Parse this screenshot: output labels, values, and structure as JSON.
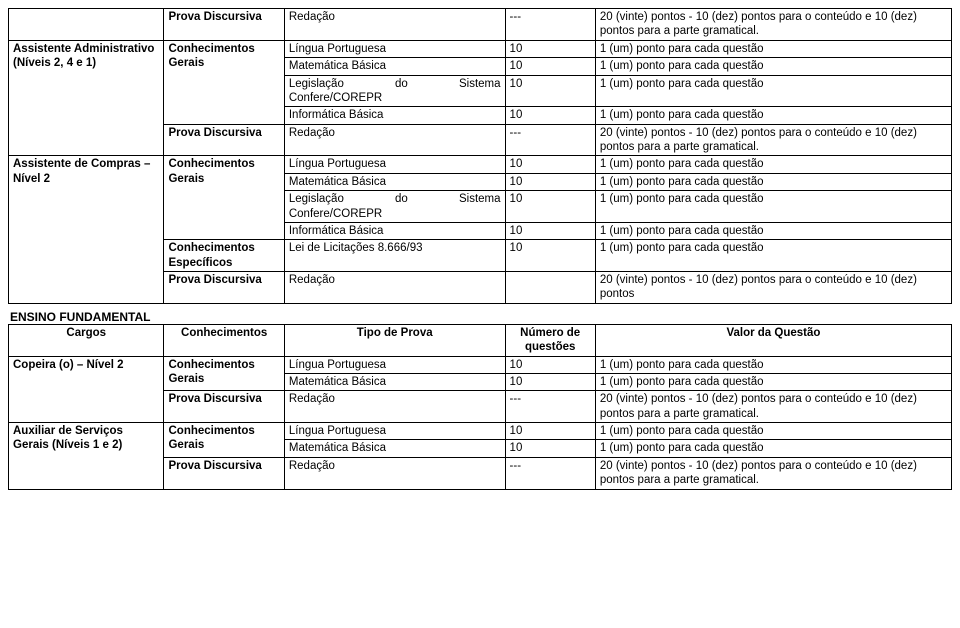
{
  "colors": {
    "text": "#000000",
    "border": "#000000",
    "bg": "#ffffff"
  },
  "fonts": {
    "family": "Arial",
    "size_pt": 11.5
  },
  "sections": {
    "top": {
      "rows": [
        {
          "cargo": "",
          "conh": "Prova Discursiva",
          "tipo": "Redação",
          "num": "---",
          "valor": "20 (vinte) pontos - 10 (dez) pontos para o conteúdo e 10 (dez) pontos para a parte gramatical."
        }
      ],
      "groups": [
        {
          "cargo": "Assistente Administrativo (Níveis 2, 4 e 1)",
          "conh_group": "Conhecimentos Gerais",
          "items": [
            {
              "tipo": "Língua Portuguesa",
              "num": "10",
              "valor": "1 (um) ponto para cada questão"
            },
            {
              "tipo": "Matemática Básica",
              "num": "10",
              "valor": "1 (um) ponto para cada questão"
            },
            {
              "tipo_parts": [
                "Legislação",
                "do",
                "Sistema"
              ],
              "sub": "Confere/COREPR",
              "num": "10",
              "valor": "1 (um) ponto para cada questão"
            },
            {
              "tipo": "Informática Básica",
              "num": "10",
              "valor": "1 (um) ponto para cada questão"
            }
          ],
          "discursiva": {
            "conh": "Prova Discursiva",
            "tipo": "Redação",
            "num": "---",
            "valor": "20 (vinte) pontos - 10 (dez) pontos para o conteúdo e 10 (dez) pontos para a parte gramatical."
          }
        },
        {
          "cargo": "Assistente de Compras – Nível 2",
          "conh_group": "Conhecimentos Gerais",
          "items": [
            {
              "tipo": "Língua Portuguesa",
              "num": "10",
              "valor": "1 (um) ponto para cada questão"
            },
            {
              "tipo": "Matemática Básica",
              "num": "10",
              "valor": "1 (um) ponto para cada questão"
            },
            {
              "tipo_parts": [
                "Legislação",
                "do",
                "Sistema"
              ],
              "sub": "Confere/COREPR",
              "num": "10",
              "valor": "1 (um) ponto para cada questão"
            },
            {
              "tipo": "Informática Básica",
              "num": "10",
              "valor": "1 (um) ponto para cada questão"
            }
          ],
          "especificos": {
            "conh": "Conhecimentos Específicos",
            "tipo": "Lei de Licitações 8.666/93",
            "num": "10",
            "valor": "1 (um) ponto para cada questão"
          },
          "discursiva": {
            "conh": "Prova Discursiva",
            "tipo": "Redação",
            "num": "",
            "valor": "20 (vinte) pontos - 10 (dez) pontos para o conteúdo e 10 (dez) pontos"
          }
        }
      ]
    },
    "fundamental": {
      "heading": "ENSINO FUNDAMENTAL",
      "headers": {
        "cargo": "Cargos",
        "conh": "Conhecimentos",
        "tipo": "Tipo de Prova",
        "num": "Número de questões",
        "valor": "Valor da Questão"
      },
      "groups": [
        {
          "cargo": "Copeira (o) – Nível 2",
          "conh_group": "Conhecimentos Gerais",
          "items": [
            {
              "tipo": "Língua Portuguesa",
              "num": "10",
              "valor": "1 (um) ponto para cada questão"
            },
            {
              "tipo": "Matemática Básica",
              "num": "10",
              "valor": "1 (um) ponto para cada questão"
            }
          ],
          "discursiva": {
            "conh": "Prova Discursiva",
            "tipo": "Redação",
            "num": "---",
            "valor": "20 (vinte) pontos - 10 (dez) pontos para o conteúdo e 10 (dez) pontos para a parte gramatical."
          }
        },
        {
          "cargo": "Auxiliar de Serviços Gerais (Níveis 1 e 2)",
          "conh_group": "Conhecimentos Gerais",
          "items": [
            {
              "tipo": "Língua Portuguesa",
              "num": "10",
              "valor": "1 (um) ponto para cada questão"
            },
            {
              "tipo": "Matemática Básica",
              "num": "10",
              "valor": "1 (um) ponto para cada questão"
            }
          ],
          "discursiva": {
            "conh": "Prova Discursiva",
            "tipo": "Redação",
            "num": "---",
            "valor": "20 (vinte) pontos - 10 (dez) pontos para o conteúdo e 10 (dez) pontos para a parte gramatical."
          }
        }
      ]
    }
  }
}
